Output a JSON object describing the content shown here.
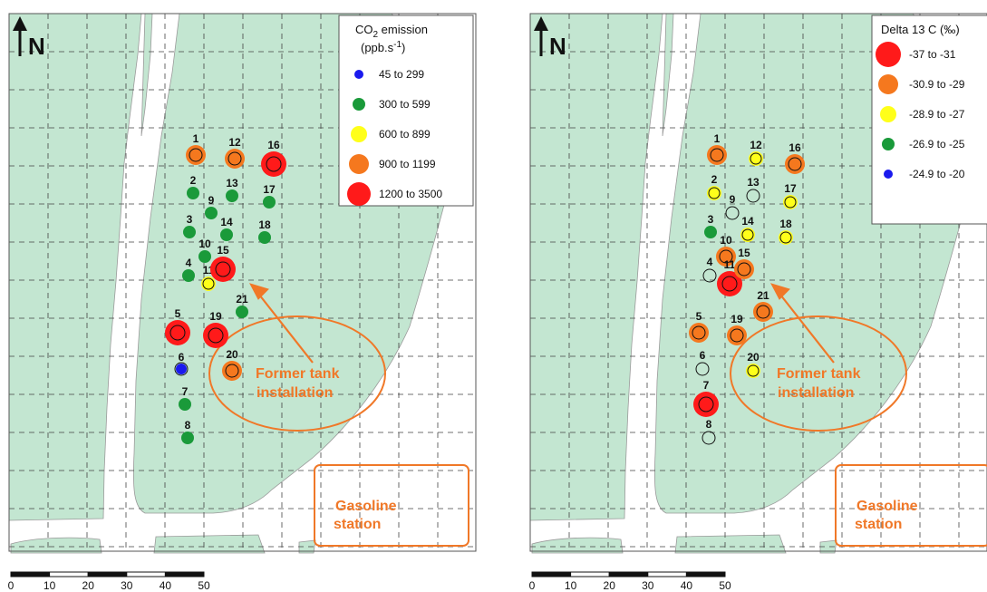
{
  "north_label": "N",
  "scale_bar": {
    "ticks": [
      "0",
      "10",
      "20",
      "30",
      "40",
      "50"
    ]
  },
  "zones": {
    "tank_label_1": "Former tank",
    "tank_label_2": "installation",
    "station_label_1": "Gasoline",
    "station_label_2": "station"
  },
  "colors": {
    "land": "#c3e6d1",
    "accent": "#f07828",
    "red": "#ff1a1a",
    "orange": "#f5781e",
    "yellow": "#ffff1a",
    "green": "#1a9a3a",
    "blue": "#1a1aee"
  },
  "left_map": {
    "legend": {
      "title_line1": "CO",
      "title_sub": "2",
      "title_rest": " emission",
      "title_line2": "(ppb.s",
      "title_sup": "-1",
      "title_end": ")",
      "classes": [
        {
          "label": "45  to  299",
          "color": "blue"
        },
        {
          "label": "300  to  599",
          "color": "green"
        },
        {
          "label": "600  to  899",
          "color": "yellow"
        },
        {
          "label": "900  to  1199",
          "color": "orange"
        },
        {
          "label": "1200  to  3500",
          "color": "red"
        }
      ]
    },
    "points": [
      {
        "id": "1",
        "class": "orange"
      },
      {
        "id": "2",
        "class": "green"
      },
      {
        "id": "3",
        "class": "green"
      },
      {
        "id": "4",
        "class": "green"
      },
      {
        "id": "5",
        "class": "red"
      },
      {
        "id": "6",
        "class": "blue"
      },
      {
        "id": "7",
        "class": "green"
      },
      {
        "id": "8",
        "class": "green"
      },
      {
        "id": "9",
        "class": "green"
      },
      {
        "id": "10",
        "class": "green"
      },
      {
        "id": "11",
        "class": "yellow"
      },
      {
        "id": "12",
        "class": "orange"
      },
      {
        "id": "13",
        "class": "green"
      },
      {
        "id": "14",
        "class": "green"
      },
      {
        "id": "15",
        "class": "red"
      },
      {
        "id": "16",
        "class": "red"
      },
      {
        "id": "17",
        "class": "green"
      },
      {
        "id": "18",
        "class": "green"
      },
      {
        "id": "19",
        "class": "red"
      },
      {
        "id": "20",
        "class": "orange"
      },
      {
        "id": "21",
        "class": "green"
      }
    ]
  },
  "right_map": {
    "legend": {
      "title": "Delta 13 C (‰)",
      "classes": [
        {
          "label": "-37  to  -31",
          "color": "red"
        },
        {
          "label": "-30.9  to  -29",
          "color": "orange"
        },
        {
          "label": "-28.9  to  -27",
          "color": "yellow"
        },
        {
          "label": "-26.9  to  -25",
          "color": "green"
        },
        {
          "label": "-24.9  to  -20",
          "color": "blue"
        }
      ]
    },
    "points": [
      {
        "id": "1",
        "class": "orange"
      },
      {
        "id": "2",
        "class": "yellow"
      },
      {
        "id": "3",
        "class": "green"
      },
      {
        "id": "4",
        "class": "none"
      },
      {
        "id": "5",
        "class": "orange"
      },
      {
        "id": "6",
        "class": "none"
      },
      {
        "id": "7",
        "class": "red"
      },
      {
        "id": "8",
        "class": "none"
      },
      {
        "id": "9",
        "class": "none"
      },
      {
        "id": "10",
        "class": "orange"
      },
      {
        "id": "11",
        "class": "red"
      },
      {
        "id": "12",
        "class": "yellow"
      },
      {
        "id": "13",
        "class": "none"
      },
      {
        "id": "14",
        "class": "yellow"
      },
      {
        "id": "15",
        "class": "orange"
      },
      {
        "id": "16",
        "class": "orange"
      },
      {
        "id": "17",
        "class": "yellow"
      },
      {
        "id": "18",
        "class": "yellow"
      },
      {
        "id": "19",
        "class": "orange"
      },
      {
        "id": "20",
        "class": "yellow"
      },
      {
        "id": "21",
        "class": "orange"
      }
    ]
  }
}
